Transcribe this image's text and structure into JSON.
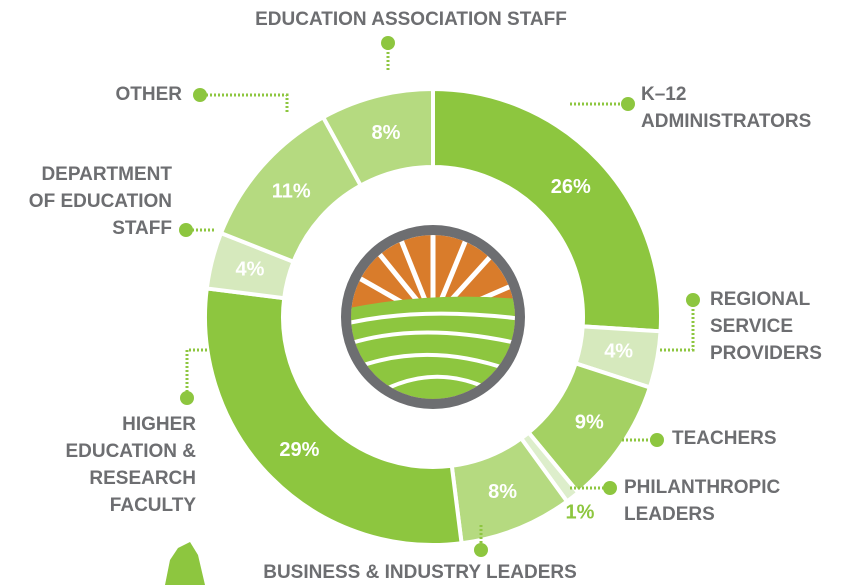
{
  "chart_data": {
    "type": "donut",
    "categories": [
      "K–12\nADMINISTRATORS",
      "REGIONAL\nSERVICE\nPROVIDERS",
      "TEACHERS",
      "PHILANTHROPIC\nLEADERS",
      "BUSINESS & INDUSTRY LEADERS",
      "HIGHER\nEDUCATION &\nRESEARCH\nFACULTY",
      "DEPARTMENT\nOF EDUCATION\nSTAFF",
      "OTHER",
      "EDUCATION ASSOCIATION STAFF"
    ],
    "values": [
      26,
      4,
      9,
      1,
      8,
      29,
      4,
      11,
      8
    ],
    "value_labels": [
      "26%",
      "4%",
      "9%",
      "1%",
      "8%",
      "29%",
      "4%",
      "11%",
      "8%"
    ],
    "colors": [
      "#8dc63f",
      "#d6e9bd",
      "#a4d163",
      "#ddeecb",
      "#b5da80",
      "#8dc63f",
      "#d6e9bd",
      "#b5da80",
      "#b5da80"
    ]
  }
}
